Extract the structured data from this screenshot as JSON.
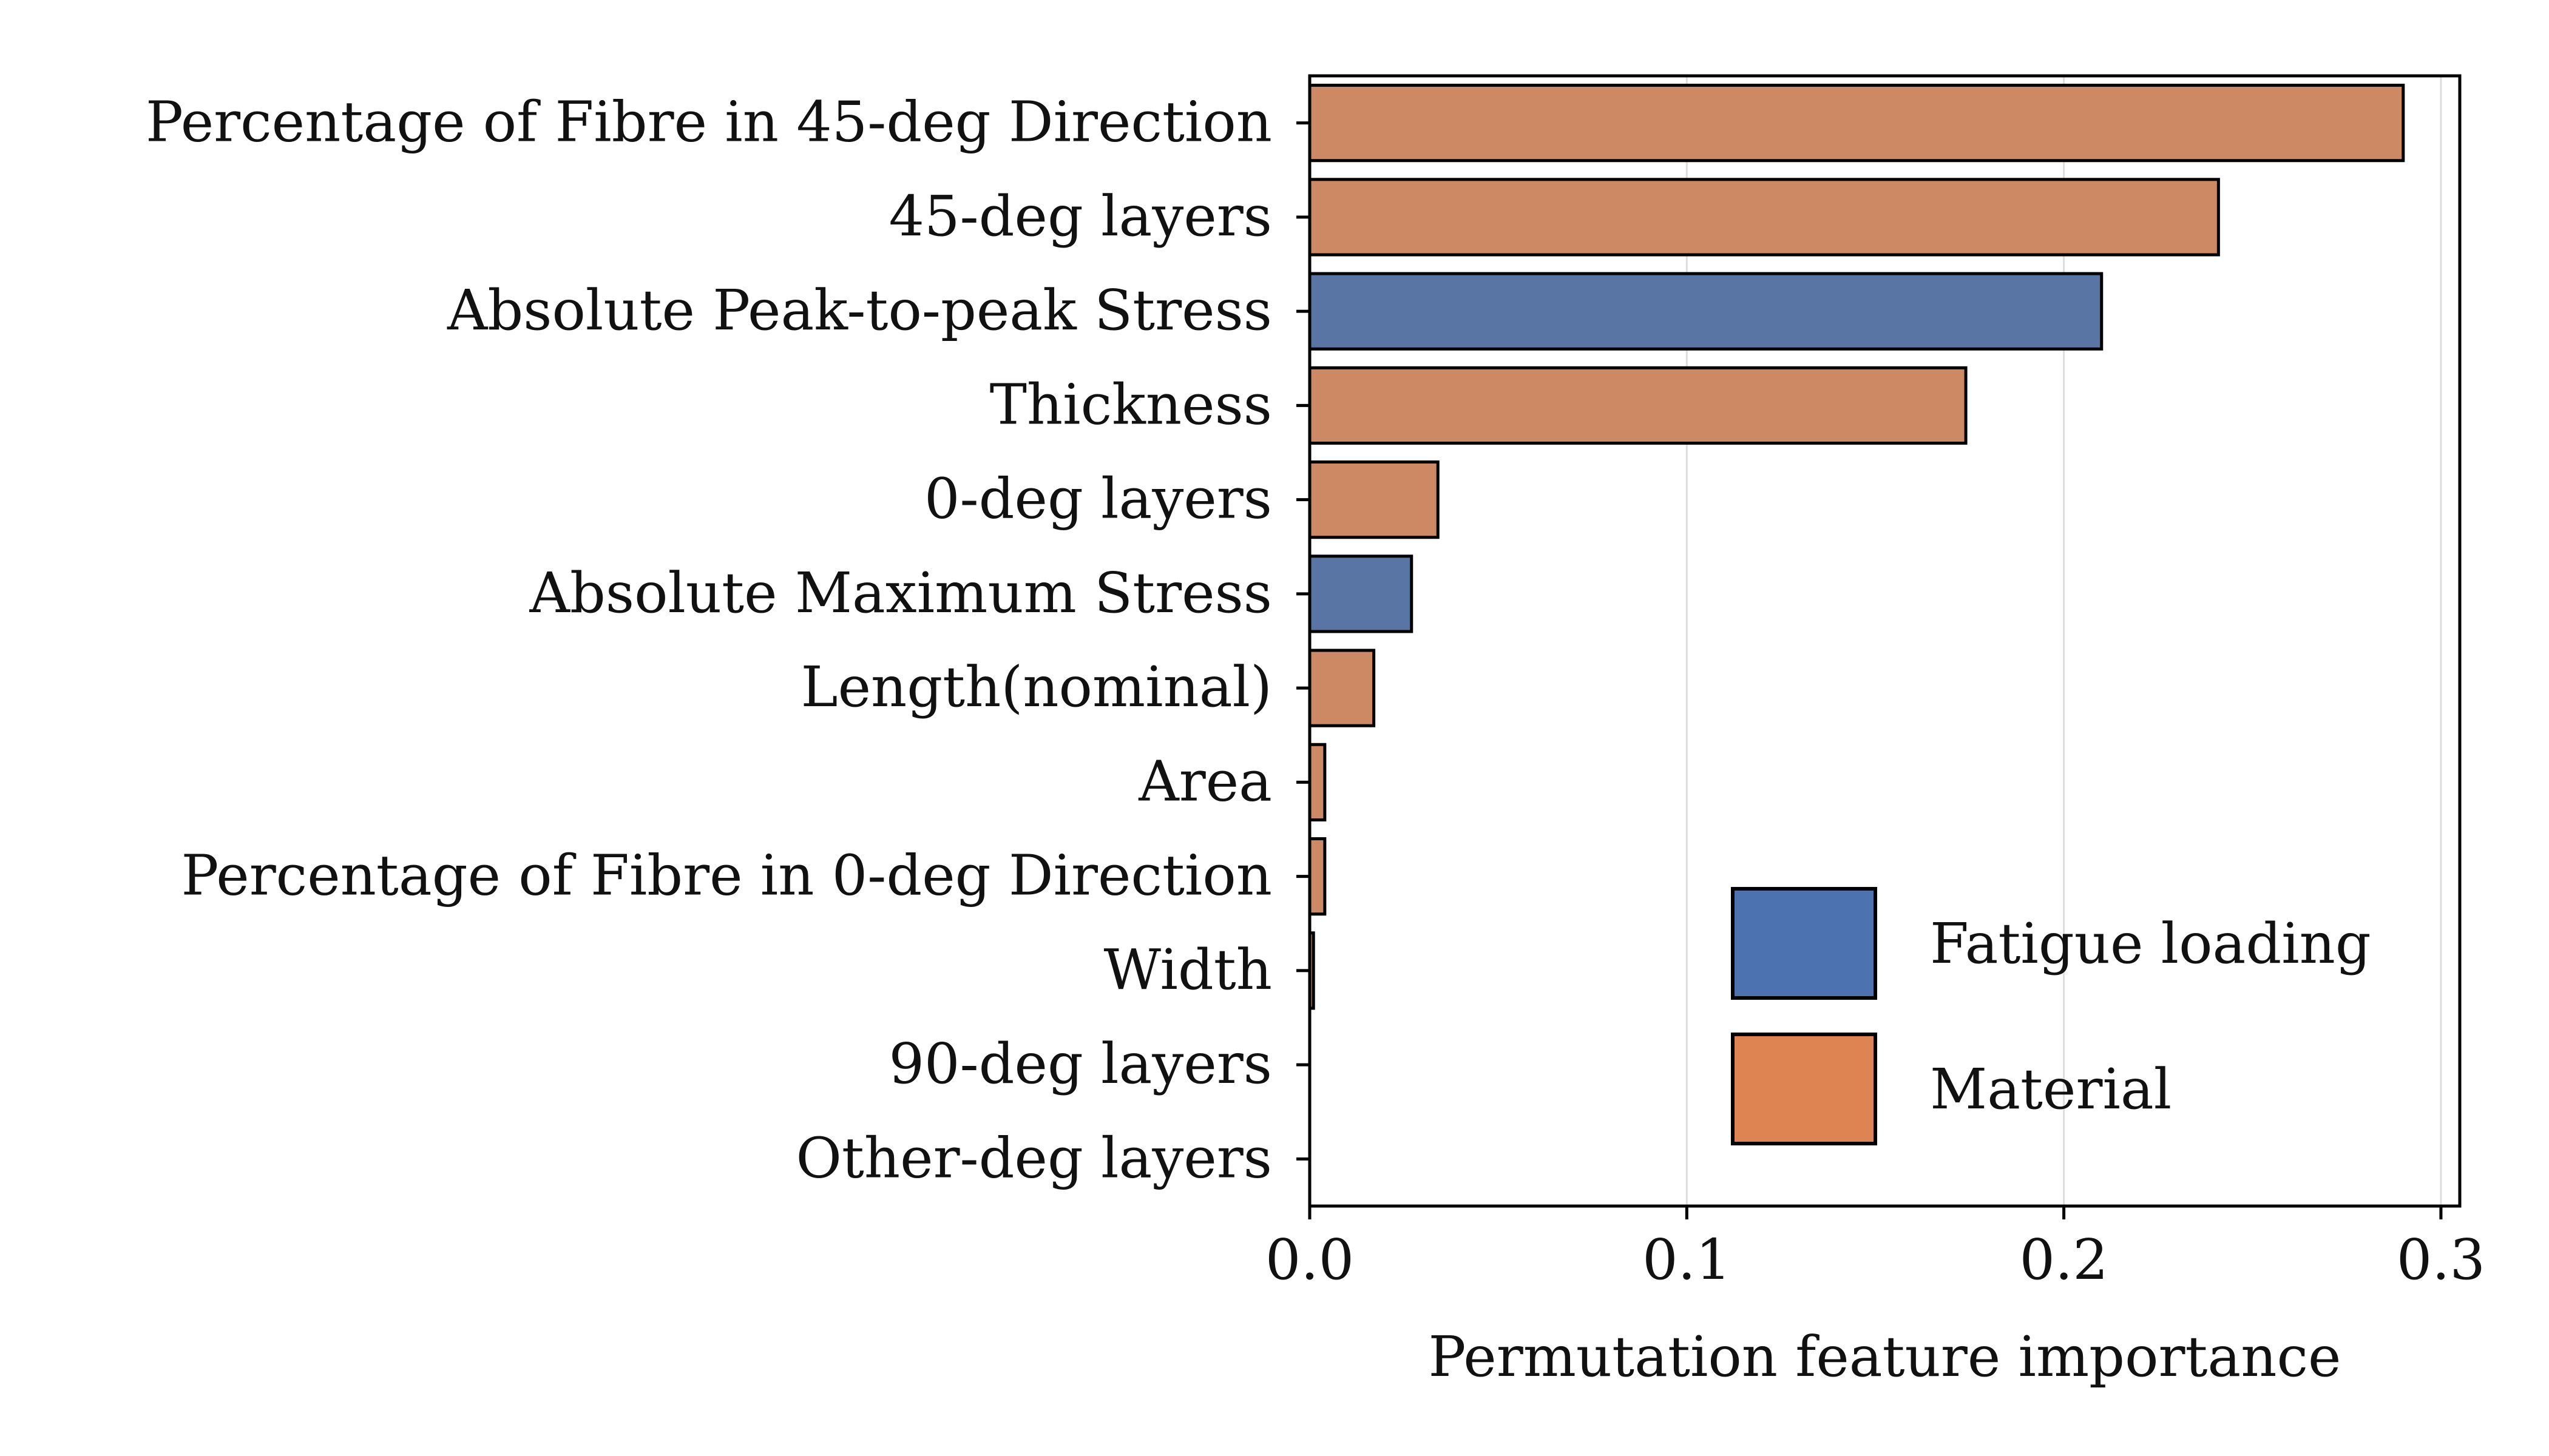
{
  "chart_data": {
    "type": "bar",
    "orientation": "horizontal",
    "xlabel": "Permutation feature importance",
    "ylabel": "",
    "xlim": [
      0.0,
      0.305
    ],
    "xticks": [
      0.0,
      0.1,
      0.2,
      0.3
    ],
    "xtick_labels": [
      "0.0",
      "0.1",
      "0.2",
      "0.3"
    ],
    "grid": "vertical gridlines on",
    "legend_position": "bottom-right",
    "categories": [
      "Percentage of Fibre in 45-deg Direction",
      "45-deg layers",
      "Absolute Peak-to-peak Stress",
      "Thickness",
      "0-deg layers",
      "Absolute Maximum Stress",
      "Length(nominal)",
      "Area",
      "Percentage of Fibre in 0-deg Direction",
      "Width",
      "90-deg layers",
      "Other-deg layers"
    ],
    "values": [
      0.29,
      0.241,
      0.21,
      0.174,
      0.034,
      0.027,
      0.017,
      0.004,
      0.004,
      0.001,
      0.0,
      0.0
    ],
    "groups": [
      "Material",
      "Material",
      "Fatigue loading",
      "Material",
      "Material",
      "Fatigue loading",
      "Material",
      "Material",
      "Material",
      "Material",
      "Material",
      "Material"
    ],
    "legend": [
      {
        "label": "Fatigue loading",
        "color": "#4c72b0"
      },
      {
        "label": "Material",
        "color": "#dd8452"
      }
    ],
    "bar_colors": {
      "Fatigue loading": "#5875a4",
      "Material": "#cc8963"
    }
  }
}
